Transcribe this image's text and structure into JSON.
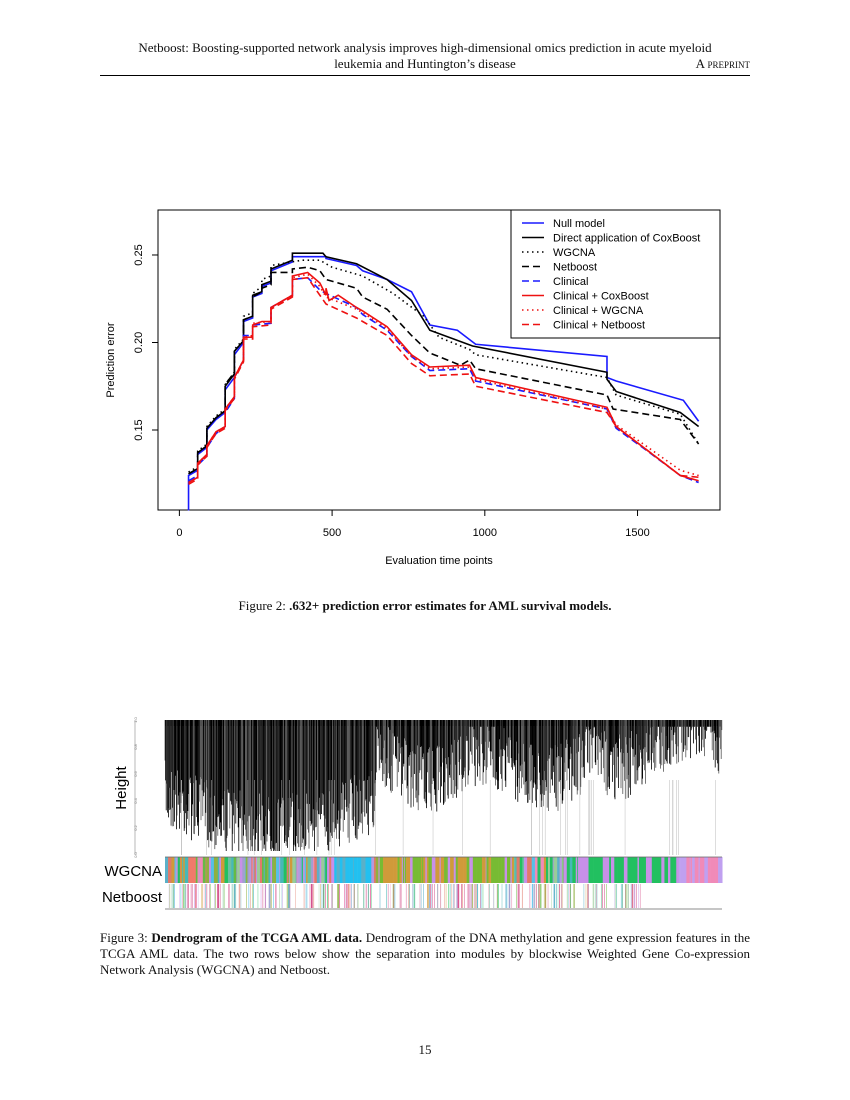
{
  "header": {
    "title_line1": "Netboost: Boosting-supported network analysis improves high-dimensional omics prediction in acute myeloid",
    "title_line2": "leukemia and Huntington’s disease",
    "right": "A preprint"
  },
  "figure2": {
    "label": "Figure 2:",
    "caption_bold": ".632+ prediction error estimates for AML survival models."
  },
  "figure3": {
    "label": "Figure 3:",
    "caption_bold": "Dendrogram of the TCGA AML data.",
    "caption_text": "Dendrogram of the DNA methylation and gene expression features in the TCGA AML data. The two rows below show the separation into modules by blockwise Weighted Gene Co-expression Network Analysis (WGCNA) and Netboost.",
    "ylabel": "Height",
    "yticks": [
      "0.0",
      "0.2",
      "0.4",
      "0.6",
      "0.8",
      "1.0"
    ],
    "row_labels": [
      "WGCNA",
      "Netboost"
    ]
  },
  "page_number": "15",
  "chart_data": {
    "type": "line",
    "title": "",
    "xlabel": "Evaluation time points",
    "ylabel": "Prediction error",
    "xlim": [
      -70,
      1770
    ],
    "ylim": [
      0.1043,
      0.2757
    ],
    "xticks": [
      0,
      500,
      1000,
      1500
    ],
    "yticks": [
      0.15,
      0.2,
      0.25
    ],
    "ytick_labels": [
      "0.15",
      "0.20",
      "0.25"
    ],
    "grid": false,
    "legend_position": "top-right",
    "series": [
      {
        "name": "Null model",
        "color": "#1a1aff",
        "dash": "solid",
        "points": [
          [
            30,
            0.104
          ],
          [
            30,
            0.124
          ],
          [
            60,
            0.127
          ],
          [
            60,
            0.136
          ],
          [
            90,
            0.14
          ],
          [
            90,
            0.15
          ],
          [
            120,
            0.156
          ],
          [
            150,
            0.16
          ],
          [
            150,
            0.173
          ],
          [
            180,
            0.18
          ],
          [
            180,
            0.193
          ],
          [
            210,
            0.2
          ],
          [
            210,
            0.212
          ],
          [
            240,
            0.214
          ],
          [
            240,
            0.226
          ],
          [
            270,
            0.228
          ],
          [
            270,
            0.232
          ],
          [
            300,
            0.234
          ],
          [
            300,
            0.241
          ],
          [
            370,
            0.246
          ],
          [
            370,
            0.249
          ],
          [
            480,
            0.249
          ],
          [
            480,
            0.248
          ],
          [
            580,
            0.244
          ],
          [
            600,
            0.241
          ],
          [
            680,
            0.236
          ],
          [
            760,
            0.229
          ],
          [
            820,
            0.21
          ],
          [
            910,
            0.207
          ],
          [
            970,
            0.199
          ],
          [
            1400,
            0.192
          ],
          [
            1400,
            0.18
          ],
          [
            1430,
            0.178
          ],
          [
            1650,
            0.167
          ],
          [
            1700,
            0.155
          ]
        ]
      },
      {
        "name": "Direct application of CoxBoost",
        "color": "#000000",
        "dash": "solid",
        "points": [
          [
            30,
            0.125
          ],
          [
            60,
            0.128
          ],
          [
            60,
            0.137
          ],
          [
            90,
            0.141
          ],
          [
            90,
            0.151
          ],
          [
            120,
            0.157
          ],
          [
            150,
            0.161
          ],
          [
            150,
            0.175
          ],
          [
            180,
            0.182
          ],
          [
            180,
            0.195
          ],
          [
            210,
            0.201
          ],
          [
            210,
            0.213
          ],
          [
            240,
            0.215
          ],
          [
            240,
            0.227
          ],
          [
            270,
            0.229
          ],
          [
            270,
            0.233
          ],
          [
            300,
            0.235
          ],
          [
            300,
            0.242
          ],
          [
            370,
            0.247
          ],
          [
            370,
            0.251
          ],
          [
            470,
            0.251
          ],
          [
            480,
            0.249
          ],
          [
            580,
            0.245
          ],
          [
            680,
            0.236
          ],
          [
            760,
            0.224
          ],
          [
            820,
            0.207
          ],
          [
            960,
            0.198
          ],
          [
            1400,
            0.183
          ],
          [
            1400,
            0.179
          ],
          [
            1430,
            0.172
          ],
          [
            1640,
            0.16
          ],
          [
            1700,
            0.152
          ]
        ]
      },
      {
        "name": "WGCNA",
        "color": "#000000",
        "dash": "dotted",
        "points": [
          [
            30,
            0.126
          ],
          [
            60,
            0.129
          ],
          [
            60,
            0.138
          ],
          [
            90,
            0.142
          ],
          [
            90,
            0.152
          ],
          [
            120,
            0.158
          ],
          [
            150,
            0.162
          ],
          [
            150,
            0.176
          ],
          [
            180,
            0.183
          ],
          [
            180,
            0.196
          ],
          [
            210,
            0.202
          ],
          [
            210,
            0.215
          ],
          [
            240,
            0.217
          ],
          [
            240,
            0.228
          ],
          [
            270,
            0.232
          ],
          [
            270,
            0.236
          ],
          [
            300,
            0.238
          ],
          [
            300,
            0.244
          ],
          [
            400,
            0.247
          ],
          [
            460,
            0.247
          ],
          [
            500,
            0.243
          ],
          [
            600,
            0.238
          ],
          [
            700,
            0.228
          ],
          [
            800,
            0.215
          ],
          [
            850,
            0.203
          ],
          [
            950,
            0.196
          ],
          [
            970,
            0.193
          ],
          [
            1400,
            0.18
          ],
          [
            1430,
            0.17
          ],
          [
            1640,
            0.159
          ],
          [
            1700,
            0.142
          ]
        ]
      },
      {
        "name": "Netboost",
        "color": "#000000",
        "dash": "dashed",
        "points": [
          [
            30,
            0.125
          ],
          [
            60,
            0.128
          ],
          [
            60,
            0.137
          ],
          [
            90,
            0.141
          ],
          [
            90,
            0.151
          ],
          [
            120,
            0.157
          ],
          [
            150,
            0.161
          ],
          [
            150,
            0.176
          ],
          [
            180,
            0.183
          ],
          [
            180,
            0.195
          ],
          [
            210,
            0.201
          ],
          [
            210,
            0.213
          ],
          [
            240,
            0.215
          ],
          [
            240,
            0.226
          ],
          [
            270,
            0.229
          ],
          [
            270,
            0.231
          ],
          [
            300,
            0.233
          ],
          [
            300,
            0.24
          ],
          [
            370,
            0.24
          ],
          [
            370,
            0.242
          ],
          [
            420,
            0.243
          ],
          [
            460,
            0.241
          ],
          [
            480,
            0.236
          ],
          [
            580,
            0.231
          ],
          [
            600,
            0.226
          ],
          [
            680,
            0.219
          ],
          [
            760,
            0.204
          ],
          [
            820,
            0.194
          ],
          [
            920,
            0.187
          ],
          [
            950,
            0.19
          ],
          [
            970,
            0.185
          ],
          [
            1400,
            0.17
          ],
          [
            1420,
            0.162
          ],
          [
            1640,
            0.156
          ],
          [
            1700,
            0.142
          ]
        ]
      },
      {
        "name": "Clinical",
        "color": "#1a1aff",
        "dash": "dashed",
        "points": [
          [
            30,
            0.121
          ],
          [
            60,
            0.124
          ],
          [
            60,
            0.13
          ],
          [
            90,
            0.135
          ],
          [
            90,
            0.14
          ],
          [
            120,
            0.148
          ],
          [
            150,
            0.152
          ],
          [
            150,
            0.16
          ],
          [
            180,
            0.168
          ],
          [
            180,
            0.18
          ],
          [
            210,
            0.19
          ],
          [
            210,
            0.204
          ],
          [
            240,
            0.204
          ],
          [
            240,
            0.21
          ],
          [
            300,
            0.211
          ],
          [
            300,
            0.22
          ],
          [
            370,
            0.227
          ],
          [
            370,
            0.236
          ],
          [
            420,
            0.237
          ],
          [
            460,
            0.23
          ],
          [
            480,
            0.228
          ],
          [
            580,
            0.22
          ],
          [
            600,
            0.216
          ],
          [
            680,
            0.207
          ],
          [
            760,
            0.192
          ],
          [
            820,
            0.184
          ],
          [
            950,
            0.185
          ],
          [
            970,
            0.178
          ],
          [
            1400,
            0.162
          ],
          [
            1430,
            0.151
          ],
          [
            1540,
            0.137
          ],
          [
            1640,
            0.124
          ],
          [
            1700,
            0.12
          ]
        ]
      },
      {
        "name": "Clinical + CoxBoost",
        "color": "#ee1111",
        "dash": "solid",
        "points": [
          [
            30,
            0.12
          ],
          [
            60,
            0.123
          ],
          [
            60,
            0.131
          ],
          [
            90,
            0.136
          ],
          [
            90,
            0.141
          ],
          [
            120,
            0.149
          ],
          [
            150,
            0.152
          ],
          [
            150,
            0.162
          ],
          [
            180,
            0.169
          ],
          [
            180,
            0.18
          ],
          [
            210,
            0.19
          ],
          [
            210,
            0.203
          ],
          [
            240,
            0.203
          ],
          [
            240,
            0.21
          ],
          [
            270,
            0.212
          ],
          [
            300,
            0.212
          ],
          [
            300,
            0.22
          ],
          [
            370,
            0.227
          ],
          [
            370,
            0.238
          ],
          [
            420,
            0.24
          ],
          [
            460,
            0.234
          ],
          [
            480,
            0.227
          ],
          [
            480,
            0.231
          ],
          [
            490,
            0.224
          ],
          [
            520,
            0.227
          ],
          [
            580,
            0.22
          ],
          [
            600,
            0.218
          ],
          [
            680,
            0.209
          ],
          [
            760,
            0.193
          ],
          [
            820,
            0.186
          ],
          [
            950,
            0.187
          ],
          [
            970,
            0.18
          ],
          [
            1400,
            0.163
          ],
          [
            1430,
            0.152
          ],
          [
            1640,
            0.124
          ],
          [
            1700,
            0.121
          ]
        ]
      },
      {
        "name": "Clinical + WGCNA",
        "color": "#ee1111",
        "dash": "dotted",
        "points": [
          [
            30,
            0.12
          ],
          [
            60,
            0.123
          ],
          [
            60,
            0.131
          ],
          [
            90,
            0.136
          ],
          [
            90,
            0.141
          ],
          [
            120,
            0.149
          ],
          [
            150,
            0.152
          ],
          [
            150,
            0.162
          ],
          [
            180,
            0.169
          ],
          [
            180,
            0.18
          ],
          [
            210,
            0.19
          ],
          [
            210,
            0.203
          ],
          [
            240,
            0.204
          ],
          [
            240,
            0.211
          ],
          [
            300,
            0.212
          ],
          [
            300,
            0.22
          ],
          [
            370,
            0.227
          ],
          [
            370,
            0.237
          ],
          [
            420,
            0.239
          ],
          [
            460,
            0.232
          ],
          [
            480,
            0.226
          ],
          [
            580,
            0.219
          ],
          [
            600,
            0.217
          ],
          [
            680,
            0.208
          ],
          [
            760,
            0.192
          ],
          [
            820,
            0.185
          ],
          [
            950,
            0.186
          ],
          [
            970,
            0.179
          ],
          [
            1400,
            0.162
          ],
          [
            1430,
            0.153
          ],
          [
            1640,
            0.127
          ],
          [
            1700,
            0.124
          ]
        ]
      },
      {
        "name": "Clinical + Netboost",
        "color": "#ee1111",
        "dash": "dashed",
        "points": [
          [
            30,
            0.119
          ],
          [
            60,
            0.122
          ],
          [
            60,
            0.13
          ],
          [
            90,
            0.135
          ],
          [
            90,
            0.14
          ],
          [
            120,
            0.148
          ],
          [
            150,
            0.151
          ],
          [
            150,
            0.161
          ],
          [
            180,
            0.168
          ],
          [
            180,
            0.179
          ],
          [
            210,
            0.189
          ],
          [
            210,
            0.202
          ],
          [
            240,
            0.202
          ],
          [
            240,
            0.209
          ],
          [
            300,
            0.21
          ],
          [
            300,
            0.219
          ],
          [
            370,
            0.226
          ],
          [
            370,
            0.236
          ],
          [
            420,
            0.237
          ],
          [
            460,
            0.227
          ],
          [
            480,
            0.222
          ],
          [
            580,
            0.214
          ],
          [
            600,
            0.212
          ],
          [
            680,
            0.204
          ],
          [
            760,
            0.188
          ],
          [
            820,
            0.181
          ],
          [
            950,
            0.182
          ],
          [
            970,
            0.175
          ],
          [
            1400,
            0.16
          ],
          [
            1430,
            0.152
          ],
          [
            1640,
            0.124
          ],
          [
            1700,
            0.123
          ]
        ]
      }
    ]
  }
}
